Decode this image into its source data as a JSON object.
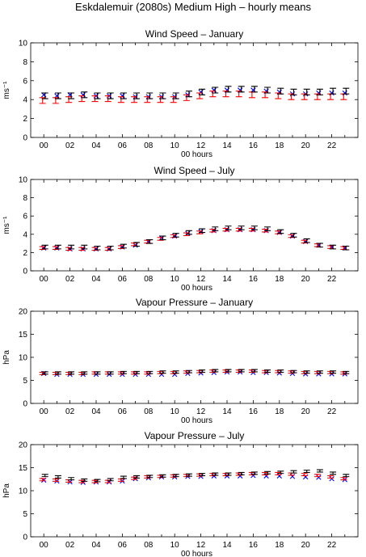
{
  "figure": {
    "title": "Eskdalemuir (2080s) Medium High – hourly means"
  },
  "chart_data": [
    {
      "type": "scatter",
      "title": "Wind Speed – January",
      "xlabel": "00 hours",
      "ylabel": "ms⁻¹",
      "xlim": [
        -1,
        24
      ],
      "ylim": [
        0,
        10
      ],
      "yticks": [
        0,
        2,
        4,
        6,
        8,
        10
      ],
      "xticks": [
        "00",
        "02",
        "04",
        "06",
        "08",
        "10",
        "12",
        "14",
        "16",
        "18",
        "20",
        "22"
      ],
      "grid": false,
      "legend": "none",
      "x": [
        0,
        1,
        2,
        3,
        4,
        5,
        6,
        7,
        8,
        9,
        10,
        11,
        12,
        13,
        14,
        15,
        16,
        17,
        18,
        19,
        20,
        21,
        22,
        23
      ],
      "series": [
        {
          "marker": "cross",
          "color": "#0000ff",
          "values": [
            4.5,
            4.4,
            4.5,
            4.5,
            4.4,
            4.4,
            4.4,
            4.3,
            4.3,
            4.3,
            4.3,
            4.5,
            4.8,
            5.0,
            5.0,
            5.0,
            5.0,
            4.9,
            4.8,
            4.6,
            4.6,
            4.7,
            4.7,
            4.7
          ]
        },
        {
          "marker": "errorbar",
          "color": "#ff0000",
          "values": [
            3.9,
            3.9,
            4.0,
            4.1,
            4.1,
            4.1,
            4.0,
            4.0,
            4.0,
            4.0,
            4.0,
            4.2,
            4.4,
            4.6,
            4.6,
            4.6,
            4.5,
            4.5,
            4.4,
            4.3,
            4.3,
            4.3,
            4.3,
            4.3
          ],
          "err": [
            0.3,
            0.3,
            0.3,
            0.3,
            0.3,
            0.3,
            0.3,
            0.3,
            0.3,
            0.3,
            0.3,
            0.3,
            0.3,
            0.3,
            0.3,
            0.3,
            0.3,
            0.3,
            0.3,
            0.3,
            0.3,
            0.3,
            0.3,
            0.3
          ]
        },
        {
          "marker": "errorbar",
          "color": "#000000",
          "values": [
            4.4,
            4.4,
            4.4,
            4.5,
            4.4,
            4.4,
            4.4,
            4.4,
            4.4,
            4.4,
            4.4,
            4.6,
            4.8,
            5.0,
            5.1,
            5.1,
            5.1,
            5.0,
            4.9,
            4.8,
            4.8,
            4.8,
            4.9,
            4.9
          ],
          "err": [
            0.3,
            0.3,
            0.3,
            0.3,
            0.3,
            0.3,
            0.3,
            0.3,
            0.3,
            0.3,
            0.3,
            0.3,
            0.3,
            0.3,
            0.3,
            0.3,
            0.3,
            0.3,
            0.3,
            0.3,
            0.3,
            0.3,
            0.3,
            0.3
          ]
        }
      ]
    },
    {
      "type": "scatter",
      "title": "Wind Speed – July",
      "xlabel": "00 hours",
      "ylabel": "ms⁻¹",
      "xlim": [
        -1,
        24
      ],
      "ylim": [
        0,
        10
      ],
      "yticks": [
        0,
        2,
        4,
        6,
        8,
        10
      ],
      "xticks": [
        "00",
        "02",
        "04",
        "06",
        "08",
        "10",
        "12",
        "14",
        "16",
        "18",
        "20",
        "22"
      ],
      "grid": false,
      "legend": "none",
      "x": [
        0,
        1,
        2,
        3,
        4,
        5,
        6,
        7,
        8,
        9,
        10,
        11,
        12,
        13,
        14,
        15,
        16,
        17,
        18,
        19,
        20,
        21,
        22,
        23
      ],
      "series": [
        {
          "marker": "cross",
          "color": "#0000ff",
          "values": [
            2.5,
            2.5,
            2.4,
            2.4,
            2.4,
            2.4,
            2.6,
            2.8,
            3.2,
            3.6,
            3.8,
            4.1,
            4.3,
            4.4,
            4.5,
            4.5,
            4.5,
            4.4,
            4.2,
            3.8,
            3.2,
            2.8,
            2.6,
            2.5
          ]
        },
        {
          "marker": "errorbar",
          "color": "#ff0000",
          "values": [
            2.5,
            2.5,
            2.4,
            2.4,
            2.4,
            2.4,
            2.6,
            2.9,
            3.2,
            3.5,
            3.8,
            4.0,
            4.2,
            4.4,
            4.5,
            4.5,
            4.5,
            4.4,
            4.2,
            3.8,
            3.2,
            2.8,
            2.6,
            2.5
          ],
          "err": [
            0.15,
            0.15,
            0.15,
            0.15,
            0.15,
            0.15,
            0.15,
            0.15,
            0.15,
            0.15,
            0.15,
            0.15,
            0.15,
            0.15,
            0.15,
            0.15,
            0.15,
            0.15,
            0.15,
            0.15,
            0.15,
            0.15,
            0.15,
            0.15
          ]
        },
        {
          "marker": "errorbar",
          "color": "#000000",
          "values": [
            2.6,
            2.6,
            2.6,
            2.6,
            2.5,
            2.5,
            2.7,
            2.9,
            3.2,
            3.6,
            3.9,
            4.2,
            4.4,
            4.6,
            4.7,
            4.7,
            4.7,
            4.6,
            4.3,
            3.9,
            3.3,
            2.8,
            2.6,
            2.5
          ],
          "err": [
            0.2,
            0.2,
            0.2,
            0.2,
            0.2,
            0.2,
            0.2,
            0.2,
            0.2,
            0.2,
            0.2,
            0.2,
            0.2,
            0.2,
            0.2,
            0.2,
            0.2,
            0.2,
            0.2,
            0.2,
            0.2,
            0.2,
            0.2,
            0.2
          ]
        }
      ]
    },
    {
      "type": "scatter",
      "title": "Vapour Pressure – January",
      "xlabel": "00 hours",
      "ylabel": "hPa",
      "xlim": [
        -1,
        24
      ],
      "ylim": [
        0,
        20
      ],
      "yticks": [
        0,
        5,
        10,
        15,
        20
      ],
      "xticks": [
        "00",
        "02",
        "04",
        "06",
        "08",
        "10",
        "12",
        "14",
        "16",
        "18",
        "20",
        "22"
      ],
      "grid": false,
      "legend": "none",
      "x": [
        0,
        1,
        2,
        3,
        4,
        5,
        6,
        7,
        8,
        9,
        10,
        11,
        12,
        13,
        14,
        15,
        16,
        17,
        18,
        19,
        20,
        21,
        22,
        23
      ],
      "series": [
        {
          "marker": "cross",
          "color": "#0000ff",
          "values": [
            6.5,
            6.3,
            6.3,
            6.3,
            6.3,
            6.3,
            6.3,
            6.3,
            6.3,
            6.3,
            6.3,
            6.5,
            6.6,
            6.7,
            6.8,
            6.8,
            6.7,
            6.7,
            6.6,
            6.5,
            6.4,
            6.4,
            6.4,
            6.4
          ]
        },
        {
          "marker": "errorbar",
          "color": "#ff0000",
          "values": [
            6.5,
            6.5,
            6.5,
            6.5,
            6.6,
            6.6,
            6.6,
            6.6,
            6.6,
            6.7,
            6.7,
            6.8,
            6.9,
            7.0,
            7.0,
            7.0,
            7.0,
            6.9,
            6.9,
            6.8,
            6.7,
            6.7,
            6.7,
            6.6
          ],
          "err": [
            0.25,
            0.25,
            0.25,
            0.25,
            0.25,
            0.25,
            0.25,
            0.25,
            0.25,
            0.25,
            0.25,
            0.25,
            0.25,
            0.25,
            0.25,
            0.25,
            0.25,
            0.25,
            0.25,
            0.25,
            0.25,
            0.25,
            0.25,
            0.25
          ]
        },
        {
          "marker": "errorbar",
          "color": "#000000",
          "values": [
            6.6,
            6.6,
            6.6,
            6.6,
            6.6,
            6.6,
            6.7,
            6.7,
            6.7,
            6.8,
            6.8,
            6.9,
            7.0,
            7.1,
            7.1,
            7.1,
            7.1,
            7.0,
            7.0,
            6.9,
            6.8,
            6.8,
            6.8,
            6.7
          ],
          "err": [
            0.25,
            0.25,
            0.25,
            0.25,
            0.25,
            0.25,
            0.25,
            0.25,
            0.25,
            0.25,
            0.25,
            0.25,
            0.25,
            0.25,
            0.25,
            0.25,
            0.25,
            0.25,
            0.25,
            0.25,
            0.25,
            0.25,
            0.25,
            0.25
          ]
        }
      ]
    },
    {
      "type": "scatter",
      "title": "Vapour Pressure – July",
      "xlabel": "00 hours",
      "ylabel": "hPa",
      "xlim": [
        -1,
        24
      ],
      "ylim": [
        0,
        20
      ],
      "yticks": [
        0,
        5,
        10,
        15,
        20
      ],
      "xticks": [
        "00",
        "02",
        "04",
        "06",
        "08",
        "10",
        "12",
        "14",
        "16",
        "18",
        "20",
        "22"
      ],
      "grid": false,
      "legend": "none",
      "x": [
        0,
        1,
        2,
        3,
        4,
        5,
        6,
        7,
        8,
        9,
        10,
        11,
        12,
        13,
        14,
        15,
        16,
        17,
        18,
        19,
        20,
        21,
        22,
        23
      ],
      "series": [
        {
          "marker": "cross",
          "color": "#0000ff",
          "values": [
            12.3,
            12.1,
            11.9,
            11.8,
            11.9,
            11.9,
            12.1,
            12.6,
            12.8,
            13.0,
            13.0,
            13.1,
            13.1,
            13.2,
            13.2,
            13.2,
            13.3,
            13.2,
            13.2,
            13.1,
            13.0,
            12.9,
            12.6,
            12.4
          ]
        },
        {
          "marker": "errorbar",
          "color": "#ff0000",
          "values": [
            12.4,
            12.3,
            12.1,
            12.0,
            12.0,
            12.0,
            12.3,
            12.7,
            13.0,
            13.1,
            13.2,
            13.3,
            13.4,
            13.5,
            13.5,
            13.6,
            13.7,
            13.7,
            13.7,
            13.6,
            13.5,
            13.3,
            13.0,
            12.6
          ],
          "err": [
            0.25,
            0.25,
            0.25,
            0.25,
            0.25,
            0.25,
            0.25,
            0.25,
            0.25,
            0.25,
            0.25,
            0.25,
            0.25,
            0.25,
            0.25,
            0.25,
            0.25,
            0.25,
            0.25,
            0.25,
            0.25,
            0.25,
            0.25,
            0.25
          ]
        },
        {
          "marker": "errorbar",
          "color": "#000000",
          "values": [
            13.3,
            13.0,
            12.6,
            12.3,
            12.2,
            12.4,
            12.9,
            13.0,
            13.1,
            13.2,
            13.3,
            13.4,
            13.5,
            13.6,
            13.6,
            13.7,
            13.8,
            13.9,
            14.0,
            14.1,
            14.2,
            14.3,
            13.8,
            13.3
          ],
          "err": [
            0.25,
            0.25,
            0.25,
            0.25,
            0.25,
            0.25,
            0.25,
            0.25,
            0.25,
            0.25,
            0.25,
            0.25,
            0.25,
            0.25,
            0.25,
            0.25,
            0.25,
            0.25,
            0.25,
            0.25,
            0.25,
            0.25,
            0.25,
            0.25
          ]
        }
      ]
    }
  ]
}
